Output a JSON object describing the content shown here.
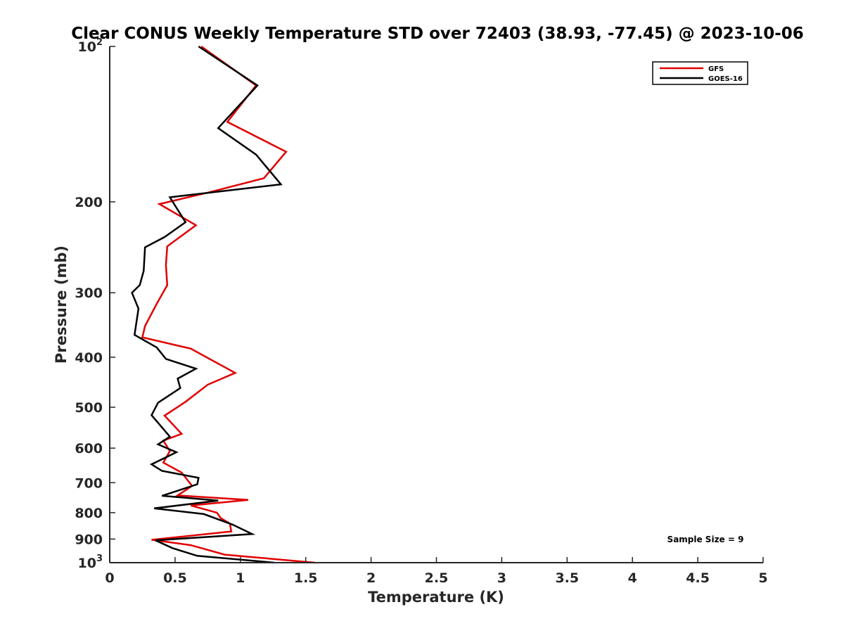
{
  "chart_data": {
    "type": "line",
    "title": "Clear CONUS Weekly Temperature STD over 72403 (38.93, -77.45) @ 2023-10-06",
    "xlabel": "Temperature (K)",
    "ylabel": "Pressure (mb)",
    "xlim": [
      0,
      5
    ],
    "ylim": [
      100,
      1000
    ],
    "y_scale": "log",
    "y_reversed": true,
    "x_ticks": [
      "0",
      "0.5",
      "1",
      "1.5",
      "2",
      "2.5",
      "3",
      "3.5",
      "4",
      "4.5",
      "5"
    ],
    "y_ticks": [
      {
        "value": 100,
        "label": "10",
        "sup": "2"
      },
      {
        "value": 200,
        "label": "200",
        "sup": ""
      },
      {
        "value": 300,
        "label": "300",
        "sup": ""
      },
      {
        "value": 400,
        "label": "400",
        "sup": ""
      },
      {
        "value": 500,
        "label": "500",
        "sup": ""
      },
      {
        "value": 600,
        "label": "600",
        "sup": ""
      },
      {
        "value": 700,
        "label": "700",
        "sup": ""
      },
      {
        "value": 800,
        "label": "800",
        "sup": ""
      },
      {
        "value": 900,
        "label": "900",
        "sup": ""
      },
      {
        "value": 1000,
        "label": "10",
        "sup": "3"
      }
    ],
    "grid": false,
    "legend_position": "top-right",
    "series": [
      {
        "name": "GFS",
        "color": "#e00000",
        "points": [
          [
            0.7,
            100
          ],
          [
            1.12,
            119
          ],
          [
            0.9,
            140
          ],
          [
            1.35,
            160
          ],
          [
            1.18,
            180
          ],
          [
            0.75,
            192
          ],
          [
            0.38,
            202
          ],
          [
            0.66,
            222
          ],
          [
            0.44,
            244
          ],
          [
            0.43,
            265
          ],
          [
            0.44,
            290
          ],
          [
            0.36,
            315
          ],
          [
            0.27,
            348
          ],
          [
            0.25,
            366
          ],
          [
            0.62,
            385
          ],
          [
            0.96,
            429
          ],
          [
            0.75,
            452
          ],
          [
            0.58,
            488
          ],
          [
            0.42,
            519
          ],
          [
            0.55,
            563
          ],
          [
            0.41,
            580
          ],
          [
            0.46,
            608
          ],
          [
            0.41,
            640
          ],
          [
            0.55,
            669
          ],
          [
            0.63,
            710
          ],
          [
            0.52,
            741
          ],
          [
            1.06,
            756
          ],
          [
            0.62,
            775
          ],
          [
            0.82,
            800
          ],
          [
            0.85,
            820
          ],
          [
            0.92,
            840
          ],
          [
            0.93,
            870
          ],
          [
            0.32,
            903
          ],
          [
            0.62,
            925
          ],
          [
            0.88,
            965
          ],
          [
            1.57,
            1000
          ]
        ]
      },
      {
        "name": "GOES-16",
        "color": "#000000",
        "points": [
          [
            0.68,
            100
          ],
          [
            1.13,
            119
          ],
          [
            0.83,
            144
          ],
          [
            1.12,
            162
          ],
          [
            1.31,
            185
          ],
          [
            0.46,
            196
          ],
          [
            0.58,
            219
          ],
          [
            0.42,
            234
          ],
          [
            0.27,
            245
          ],
          [
            0.26,
            272
          ],
          [
            0.23,
            290
          ],
          [
            0.17,
            300
          ],
          [
            0.22,
            322
          ],
          [
            0.19,
            362
          ],
          [
            0.36,
            383
          ],
          [
            0.43,
            403
          ],
          [
            0.66,
            421
          ],
          [
            0.52,
            440
          ],
          [
            0.54,
            459
          ],
          [
            0.37,
            490
          ],
          [
            0.32,
            518
          ],
          [
            0.46,
            570
          ],
          [
            0.37,
            590
          ],
          [
            0.51,
            611
          ],
          [
            0.32,
            645
          ],
          [
            0.4,
            664
          ],
          [
            0.68,
            685
          ],
          [
            0.67,
            705
          ],
          [
            0.4,
            742
          ],
          [
            0.83,
            758
          ],
          [
            0.34,
            785
          ],
          [
            0.72,
            805
          ],
          [
            0.94,
            844
          ],
          [
            1.09,
            880
          ],
          [
            0.35,
            905
          ],
          [
            0.48,
            937
          ],
          [
            0.67,
            970
          ],
          [
            1.26,
            1000
          ]
        ]
      }
    ],
    "annotation": "Sample Size = 9"
  }
}
